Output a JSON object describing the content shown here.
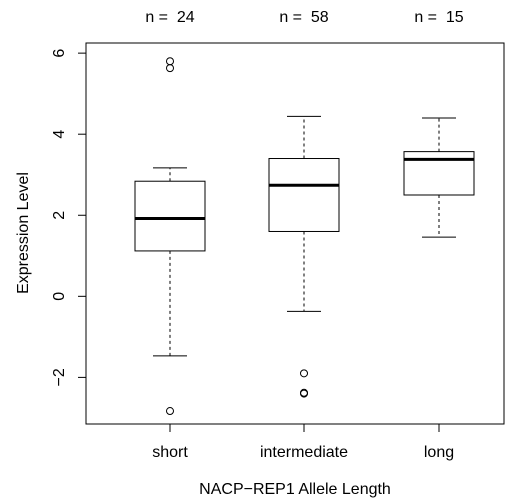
{
  "chart_data": {
    "type": "boxplot",
    "title": "",
    "xlabel": "NACP−REP1 Allele Length",
    "ylabel": "Expression Level",
    "ylim": [
      -3.15,
      6.25
    ],
    "y_ticks": [
      -2,
      0,
      2,
      4,
      6
    ],
    "y_tick_labels": [
      "−2",
      "0",
      "2",
      "4",
      "6"
    ],
    "categories": [
      "short",
      "intermediate",
      "long"
    ],
    "top_labels": [
      "n =  24",
      "n =  58",
      "n =  15"
    ],
    "boxes": [
      {
        "category": "short",
        "whisker_low": -1.47,
        "q1": 1.12,
        "median": 1.92,
        "q3": 2.84,
        "whisker_high": 3.17,
        "outliers": [
          5.63,
          5.8,
          -2.83
        ]
      },
      {
        "category": "intermediate",
        "whisker_low": -0.37,
        "q1": 1.6,
        "median": 2.74,
        "q3": 3.4,
        "whisker_high": 4.44,
        "outliers": [
          -1.9,
          -2.38,
          -2.4
        ]
      },
      {
        "category": "long",
        "whisker_low": 1.46,
        "q1": 2.5,
        "median": 3.38,
        "q3": 3.57,
        "whisker_high": 4.4,
        "outliers": []
      }
    ]
  }
}
